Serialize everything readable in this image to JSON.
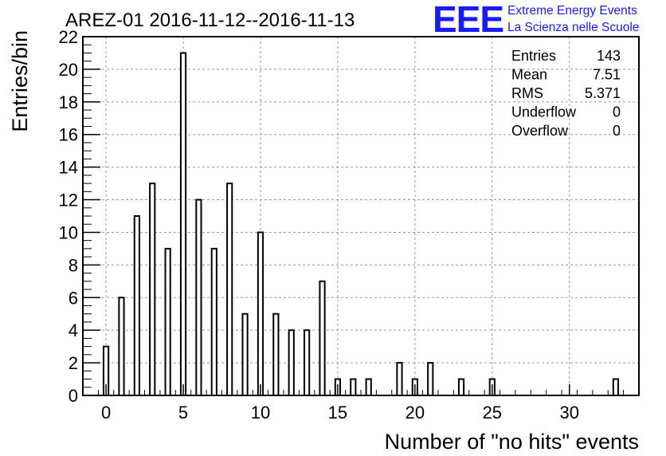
{
  "chart_data": {
    "type": "bar",
    "title": "AREZ-01 2016-11-12--2016-11-13",
    "xlabel": "Number of \"no hits\" events",
    "ylabel": "Entries/bin",
    "xlim": [
      -1.5,
      34.5
    ],
    "ylim": [
      0,
      22
    ],
    "x_ticks": [
      0,
      5,
      10,
      15,
      20,
      25,
      30
    ],
    "y_ticks": [
      0,
      2,
      4,
      6,
      8,
      10,
      12,
      14,
      16,
      18,
      20,
      22
    ],
    "grid": true,
    "bars": [
      {
        "x": 0,
        "y": 3
      },
      {
        "x": 1,
        "y": 6
      },
      {
        "x": 2,
        "y": 11
      },
      {
        "x": 3,
        "y": 13
      },
      {
        "x": 4,
        "y": 9
      },
      {
        "x": 5,
        "y": 21
      },
      {
        "x": 6,
        "y": 12
      },
      {
        "x": 7,
        "y": 9
      },
      {
        "x": 8,
        "y": 13
      },
      {
        "x": 9,
        "y": 5
      },
      {
        "x": 10,
        "y": 10
      },
      {
        "x": 11,
        "y": 5
      },
      {
        "x": 12,
        "y": 4
      },
      {
        "x": 13,
        "y": 4
      },
      {
        "x": 14,
        "y": 7
      },
      {
        "x": 15,
        "y": 1
      },
      {
        "x": 16,
        "y": 1
      },
      {
        "x": 17,
        "y": 1
      },
      {
        "x": 19,
        "y": 2
      },
      {
        "x": 20,
        "y": 1
      },
      {
        "x": 21,
        "y": 2
      },
      {
        "x": 23,
        "y": 1
      },
      {
        "x": 25,
        "y": 1
      },
      {
        "x": 33,
        "y": 1
      }
    ],
    "stats": [
      {
        "label": "Entries",
        "value": "143"
      },
      {
        "label": "Mean",
        "value": "7.51"
      },
      {
        "label": "RMS",
        "value": "5.371"
      },
      {
        "label": "Underflow",
        "value": "0"
      },
      {
        "label": "Overflow",
        "value": "0"
      }
    ]
  },
  "logo": {
    "mark": "EEE",
    "line1": "Extreme Energy Events",
    "line2": "La Scienza nelle Scuole",
    "color": "#1a1aff"
  }
}
